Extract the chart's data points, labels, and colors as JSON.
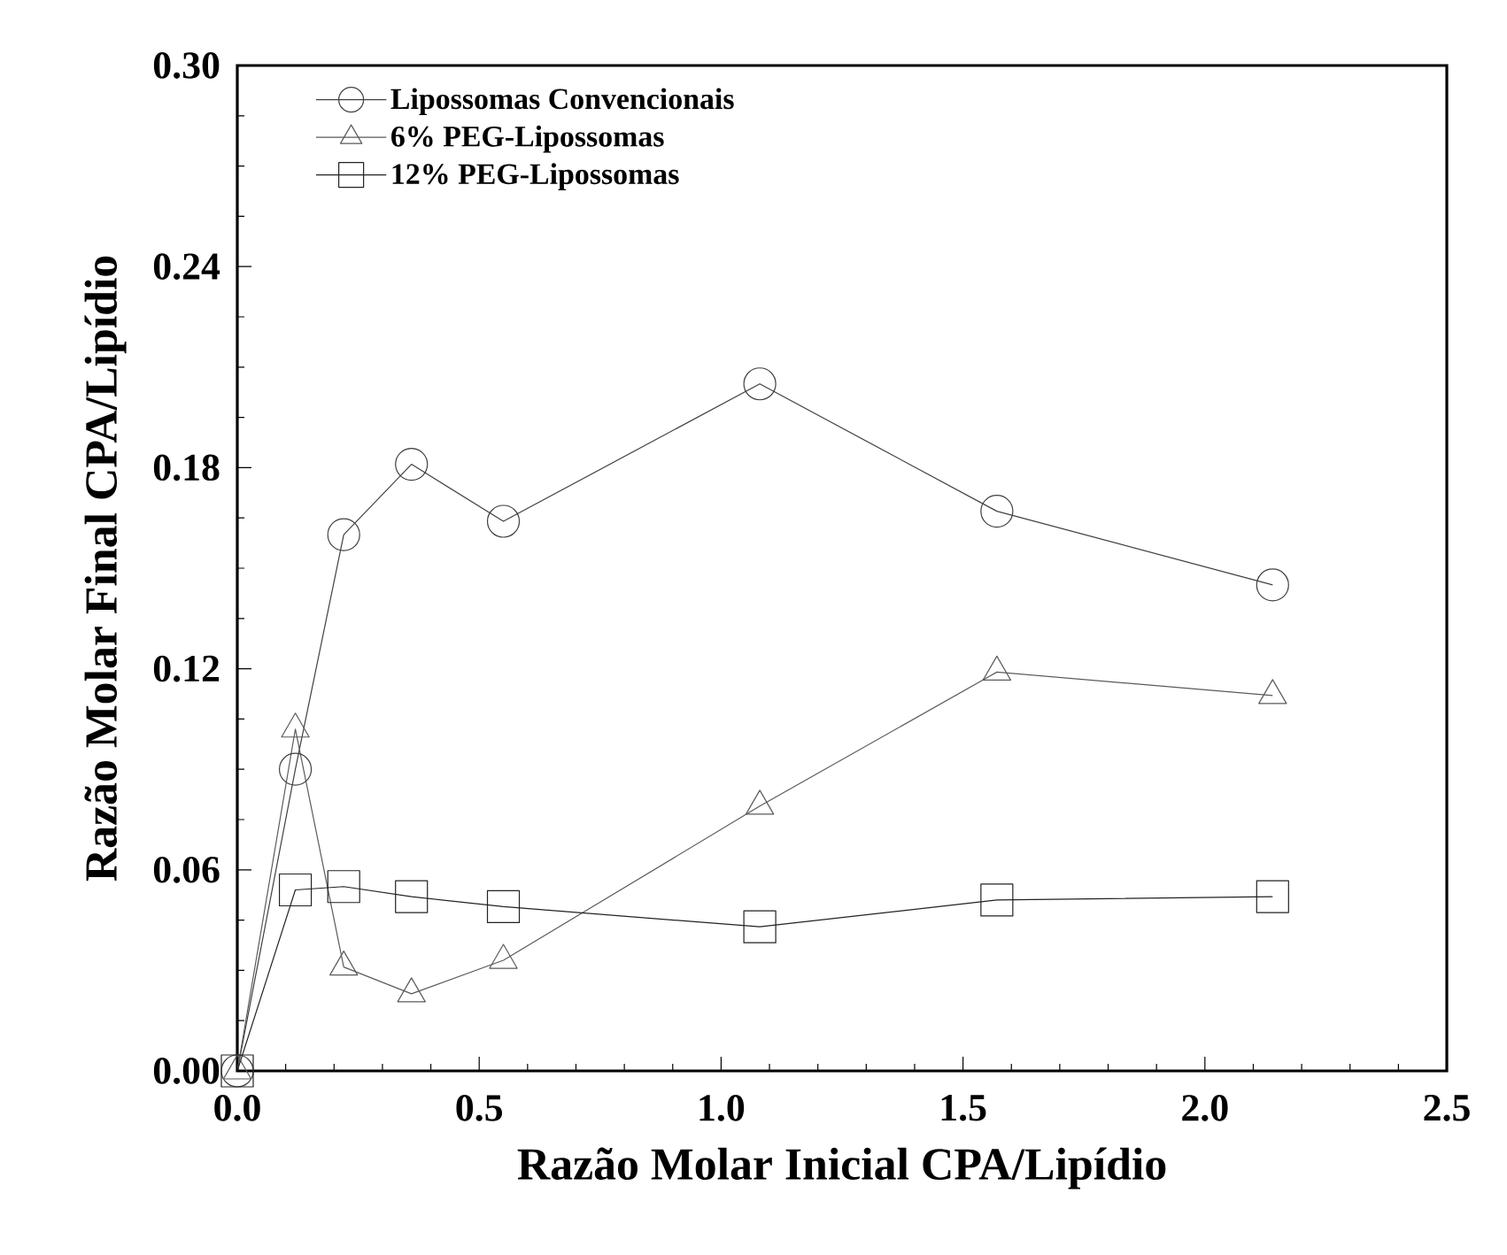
{
  "chart_data": {
    "type": "line",
    "xlabel": "Razão Molar Inicial CPA/Lipídio",
    "ylabel": "Razão Molar Final CPA/Lipídio",
    "x": [
      0,
      0.12,
      0.22,
      0.36,
      0.55,
      1.08,
      1.57,
      2.14
    ],
    "series": [
      {
        "name": "Lipossomas Convencionais",
        "color": "#404040",
        "marker": "circle",
        "values": [
          0,
          0.09,
          0.16,
          0.181,
          0.164,
          0.205,
          0.167,
          0.145
        ]
      },
      {
        "name": "6% PEG-Lipossomas",
        "color": "#5a5a5a",
        "marker": "triangle",
        "values": [
          0,
          0.102,
          0.031,
          0.023,
          0.033,
          0.079,
          0.119,
          0.112
        ]
      },
      {
        "name": "12% PEG-Lipossomas",
        "color": "#222222",
        "marker": "square",
        "values": [
          0,
          0.054,
          0.055,
          0.052,
          0.049,
          0.043,
          0.051,
          0.052
        ]
      }
    ],
    "xlim": [
      0,
      2.5
    ],
    "ylim": [
      0,
      0.3
    ],
    "xticks": [
      {
        "value": 0,
        "label": "0.0"
      },
      0.5,
      {
        "value": 1,
        "label": "1.0"
      },
      1.5,
      {
        "value": 2,
        "label": "2.0"
      },
      2.5
    ],
    "yticks": [
      {
        "value": 0,
        "label": "0.00"
      },
      0.06,
      0.12,
      0.18,
      0.24,
      {
        "value": 0.3,
        "label": "0.30"
      }
    ],
    "legend": "top left",
    "grid": false,
    "line_style": "solid"
  }
}
